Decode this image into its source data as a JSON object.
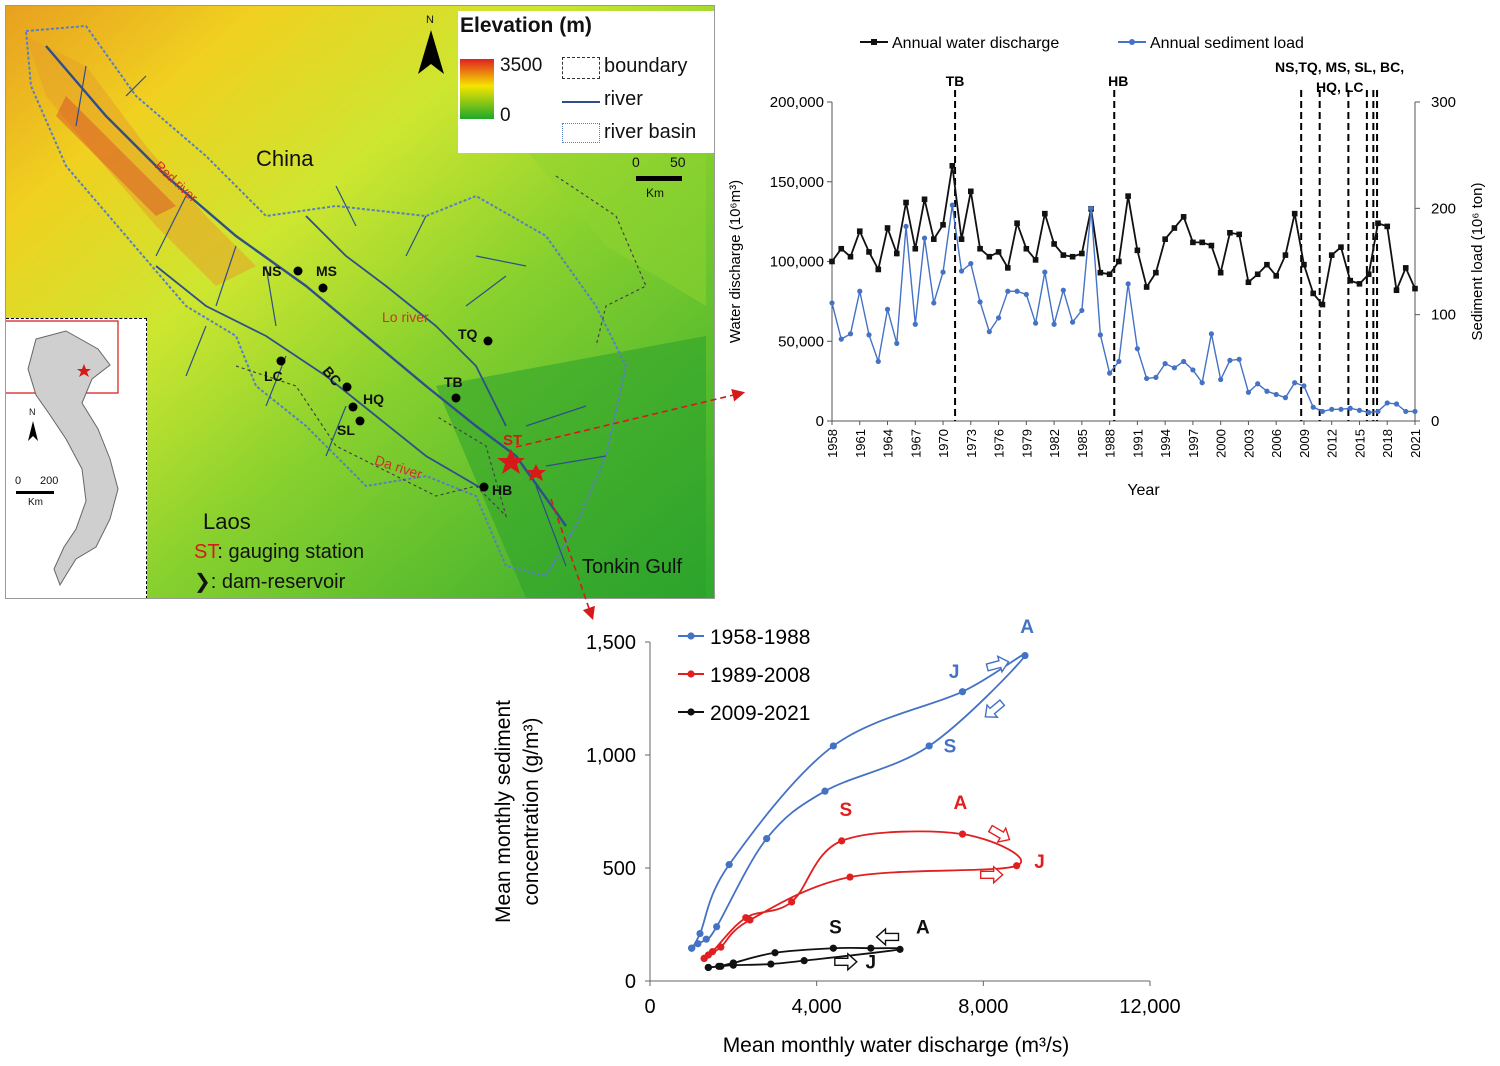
{
  "map": {
    "legend": {
      "title": "Elevation (m)",
      "max": "3500",
      "min": "0",
      "boundary": "boundary",
      "river": "river",
      "river_basin": "river basin"
    },
    "north": "N",
    "scale": {
      "zero": "0",
      "value": "50",
      "unit": "Km"
    },
    "labels": {
      "china": "China",
      "laos": "Laos",
      "tonkin_gulf": "Tonkin Gulf",
      "red_river": "Red river",
      "lo_river": "Lo river",
      "da_river": "Da river",
      "st_legend_code": "ST",
      "st_legend_text": ": gauging station",
      "dam_legend_text": ": dam-reservoir"
    },
    "stations": {
      "NS": "NS",
      "MS": "MS",
      "LC": "LC",
      "BC": "BC",
      "HQ": "HQ",
      "SL": "SL",
      "TQ": "TQ",
      "TB": "TB",
      "HB": "HB",
      "ST": "ST"
    },
    "inset": {
      "north": "N",
      "scale_zero": "0",
      "scale_value": "200",
      "unit": "Km"
    },
    "colors": {
      "high": "#e02020",
      "mid": "#f5e500",
      "low": "#1fa82a",
      "river": "#2e4f8a",
      "station": "#d61a1a"
    }
  },
  "chart_data": [
    {
      "type": "line",
      "x_label": "Year",
      "y_label_left": "Water discharge (10⁶m³)",
      "y_label_right": "Sediment load (10⁶ ton)",
      "ylim_left": [
        0,
        200000
      ],
      "ylim_right": [
        0,
        300
      ],
      "left_ticks": [
        "0",
        "50,000",
        "100,000",
        "150,000",
        "200,000"
      ],
      "right_ticks": [
        "0",
        "100",
        "200",
        "300"
      ],
      "x_ticks": [
        "1958",
        "1961",
        "1964",
        "1967",
        "1970",
        "1973",
        "1976",
        "1979",
        "1982",
        "1985",
        "1988",
        "1991",
        "1994",
        "1997",
        "2000",
        "2003",
        "2006",
        "2009",
        "2012",
        "2015",
        "2018",
        "2021"
      ],
      "years_start": 1958,
      "years_end": 2021,
      "series": [
        {
          "name": "Annual water discharge",
          "axis": "left",
          "color": "#111111",
          "values": [
            100000,
            108000,
            103000,
            119000,
            106000,
            95000,
            121000,
            105000,
            137000,
            108000,
            139000,
            114000,
            123000,
            160000,
            114000,
            144000,
            108000,
            103000,
            106000,
            96000,
            124000,
            108000,
            101000,
            130000,
            111000,
            104000,
            103000,
            105000,
            133000,
            93000,
            92000,
            100000,
            141000,
            107000,
            84000,
            93000,
            114000,
            121000,
            128000,
            112000,
            112000,
            110000,
            93000,
            118000,
            117000,
            87000,
            92000,
            98000,
            91000,
            104000,
            130000,
            98000,
            80000,
            73000,
            104000,
            109000,
            88000,
            86000,
            92000,
            124000,
            122000,
            82000,
            96000,
            83000
          ]
        },
        {
          "name": "Annual sediment load",
          "axis": "right",
          "color": "#4472c4",
          "values": [
            111,
            77,
            82,
            122,
            81,
            56,
            105,
            73,
            183,
            91,
            172,
            111,
            140,
            203,
            141,
            148,
            112,
            84,
            97,
            122,
            122,
            119,
            92,
            140,
            91,
            123,
            93,
            104,
            200,
            81,
            45,
            56,
            129,
            68,
            40,
            41,
            54,
            50,
            56,
            48,
            36,
            82,
            39,
            57,
            58,
            27,
            35,
            28,
            25,
            22,
            36,
            33,
            13,
            9,
            11,
            11,
            12,
            10,
            8,
            9,
            17,
            16,
            9,
            9
          ]
        }
      ],
      "dams": [
        {
          "label": "TB",
          "year": 1971.3
        },
        {
          "label": "HB",
          "year": 1988.5
        },
        {
          "label": "NS,TQ,",
          "year": 2008.7
        },
        {
          "label": "MS,",
          "year": 2010.7
        },
        {
          "label": "SL,",
          "year": 2013.8
        },
        {
          "label": "BC,",
          "year": 2015.8
        },
        {
          "label": "HQ,",
          "year": 2016.5
        },
        {
          "label": "LC",
          "year": 2016.9
        }
      ],
      "dam_text": {
        "tb": "TB",
        "hb": "HB",
        "line1": "NS,TQ, MS, SL, BC,",
        "line2": "HQ, LC"
      },
      "legend_position": "top"
    },
    {
      "type": "scatter",
      "x_label": "Mean monthly water discharge (m³/s)",
      "y_label_line1": "Mean monthly sediment",
      "y_label_line2": "concentration (g/m³)",
      "xlim": [
        0,
        12000
      ],
      "ylim": [
        0,
        1500
      ],
      "x_ticks": [
        "0",
        "4,000",
        "8,000",
        "12,000"
      ],
      "y_ticks": [
        "0",
        "500",
        "1,000",
        "1,500"
      ],
      "series": [
        {
          "name": "1958-1988",
          "color": "#4472c4",
          "x": [
            1000,
            1200,
            1900,
            4400,
            7500,
            9000,
            6700,
            4200,
            2800,
            1600,
            1350,
            1150,
            1000
          ],
          "y": [
            145,
            210,
            515,
            1040,
            1280,
            1440,
            1040,
            840,
            630,
            240,
            185,
            165,
            145
          ],
          "month_labels": [
            {
              "text": "J",
              "x": 7300,
              "y": 1340
            },
            {
              "text": "A",
              "x": 9050,
              "y": 1540
            },
            {
              "text": "S",
              "x": 7200,
              "y": 1010
            }
          ]
        },
        {
          "name": "1989-2008",
          "color": "#e02020",
          "x": [
            1300,
            1500,
            2300,
            3400,
            4600,
            7500,
            8800,
            4800,
            2400,
            1700,
            1400,
            1300
          ],
          "y": [
            100,
            130,
            280,
            350,
            620,
            650,
            510,
            460,
            270,
            150,
            115,
            100
          ],
          "month_labels": [
            {
              "text": "S",
              "x": 4700,
              "y": 730
            },
            {
              "text": "A",
              "x": 7450,
              "y": 760
            },
            {
              "text": "J",
              "x": 9350,
              "y": 500
            }
          ]
        },
        {
          "name": "2009-2021",
          "color": "#111111",
          "x": [
            1400,
            1650,
            2000,
            3000,
            4400,
            5300,
            6000,
            3700,
            2900,
            2000,
            1700,
            1400
          ],
          "y": [
            60,
            65,
            80,
            125,
            145,
            145,
            140,
            90,
            75,
            70,
            65,
            60
          ],
          "month_labels": [
            {
              "text": "S",
              "x": 4450,
              "y": 210
            },
            {
              "text": "A",
              "x": 6550,
              "y": 210
            },
            {
              "text": "J",
              "x": 5300,
              "y": 55
            }
          ]
        }
      ]
    }
  ]
}
